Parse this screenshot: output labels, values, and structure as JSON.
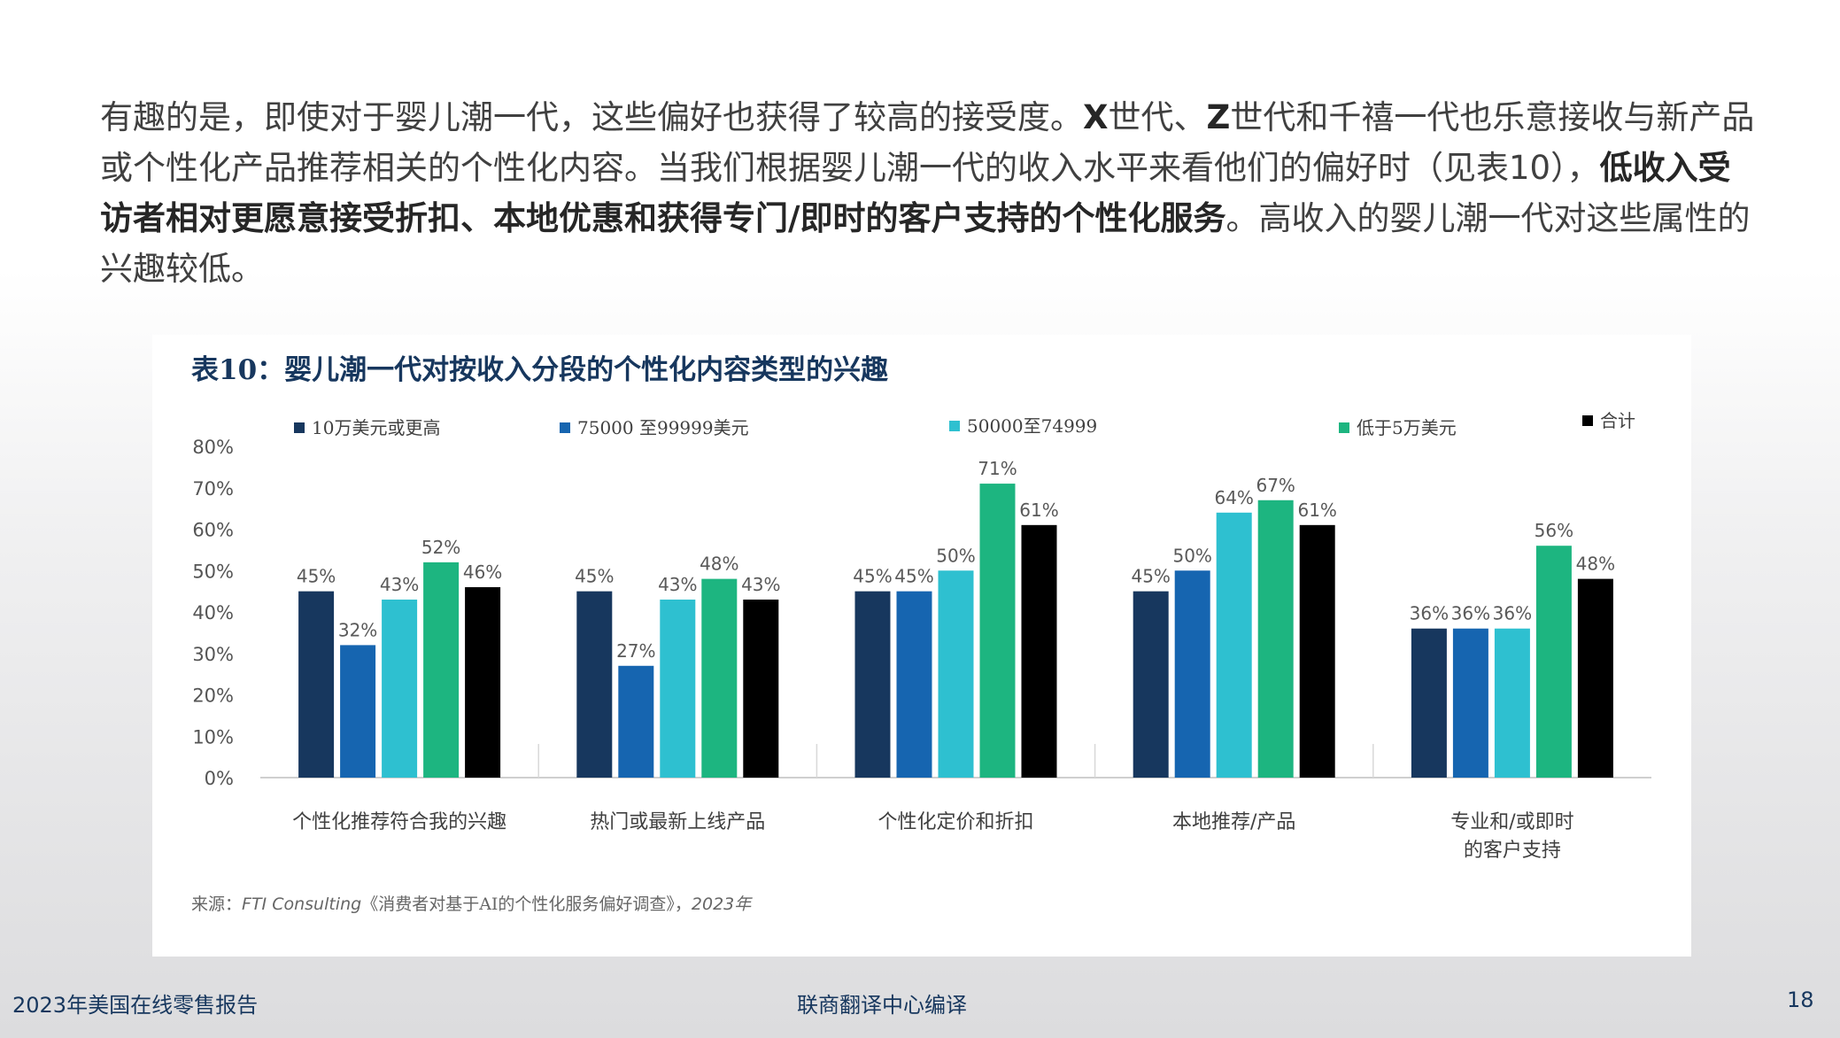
{
  "intro": {
    "part1": "有趣的是，即使对于婴儿潮一代，这些偏好也获得了较高的接受度。",
    "part2_bold": "X",
    "part3": "世代、",
    "part4_bold": "Z",
    "part5": "世代和千禧一代也乐意接收与新产品或个性化产品推荐相关的个性化内容。当我们根据婴儿潮一代的收入水平来看他们的偏好时（见表10），",
    "part6_bold": "低收入受访者相对更愿意接受折扣、本地优惠和获得专门/即时的客户支持的个性化服务",
    "part7": "。高收入的婴儿潮一代对这些属性的兴趣较低。"
  },
  "chart_title": "表10：婴儿潮一代对按收入分段的个性化内容类型的兴趣",
  "source": {
    "prefix": "来源：",
    "org": "FTI Consulting",
    "report": "《消费者对基于AI的个性化服务偏好调查》，",
    "year": "2023年"
  },
  "footer": {
    "left": "2023年美国在线零售报告",
    "center": "联商翻译中心编译",
    "page": "18"
  },
  "chart_data": {
    "type": "bar",
    "title": "表10：婴儿潮一代对按收入分段的个性化内容类型的兴趣",
    "categories": [
      [
        "个性化推荐符合我的兴趣"
      ],
      [
        "热门或最新上线产品"
      ],
      [
        "个性化定价和折扣"
      ],
      [
        "本地推荐/产品"
      ],
      [
        "专业和/或即时",
        "的客户支持"
      ]
    ],
    "series": [
      {
        "name": "10万美元或更高",
        "color": "#17375e",
        "values": [
          45,
          45,
          45,
          45,
          36
        ]
      },
      {
        "name": "75000 至99999美元",
        "color": "#1665b0",
        "values": [
          32,
          27,
          45,
          50,
          36
        ]
      },
      {
        "name": "50000至74999",
        "color": "#2ec0d0",
        "values": [
          43,
          43,
          50,
          64,
          36
        ]
      },
      {
        "name": "低于5万美元",
        "color": "#1db580",
        "values": [
          52,
          48,
          71,
          67,
          56
        ]
      },
      {
        "name": "合计",
        "color": "#000000",
        "values": [
          46,
          43,
          61,
          61,
          48
        ]
      }
    ],
    "value_suffix": "%",
    "yticks": [
      "0%",
      "10%",
      "20%",
      "30%",
      "40%",
      "50%",
      "60%",
      "70%",
      "80%"
    ],
    "ylim": [
      0,
      80
    ],
    "legend_position": "top",
    "grid": false
  }
}
